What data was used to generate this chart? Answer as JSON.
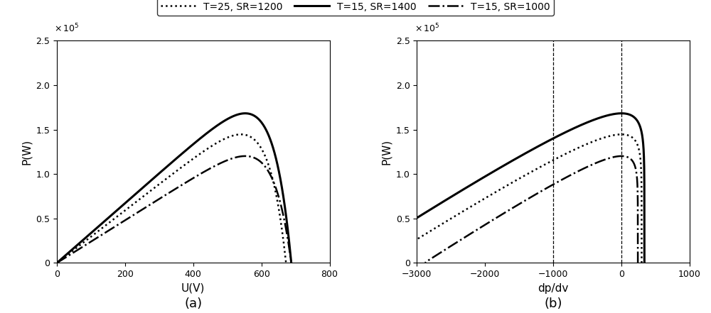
{
  "legend_labels": [
    "T=25, SR=1200",
    "T=15, SR=1400",
    "T=15, SR=1000"
  ],
  "subplot_a_xlabel": "U(V)",
  "subplot_a_ylabel": "P(W)",
  "subplot_b_xlabel": "dp/dv",
  "subplot_b_ylabel": "P(W)",
  "subplot_a_label": "(a)",
  "subplot_b_label": "(b)",
  "xlim_a": [
    0,
    800
  ],
  "ylim_a": [
    0,
    250000.0
  ],
  "xlim_b": [
    -3000,
    1000
  ],
  "ylim_b": [
    0,
    250000.0
  ],
  "vlines_b": [
    -1000,
    0
  ],
  "curve_color": "black",
  "pv_params": [
    {
      "T": 25,
      "SR": 1200,
      "style": "dotted",
      "lw": 1.8
    },
    {
      "T": 15,
      "SR": 1400,
      "style": "solid",
      "lw": 2.2
    },
    {
      "T": 15,
      "SR": 1000,
      "style": "dashdot",
      "lw": 1.8
    }
  ],
  "Ns": 20,
  "Np": 30,
  "Isc0": 8.21,
  "Voc0": 33.6,
  "Imp0": 7.61,
  "Vmp0": 26.3,
  "alpha": 0.0025,
  "beta": -0.0023,
  "T0": 25.0,
  "SR0": 1000.0
}
